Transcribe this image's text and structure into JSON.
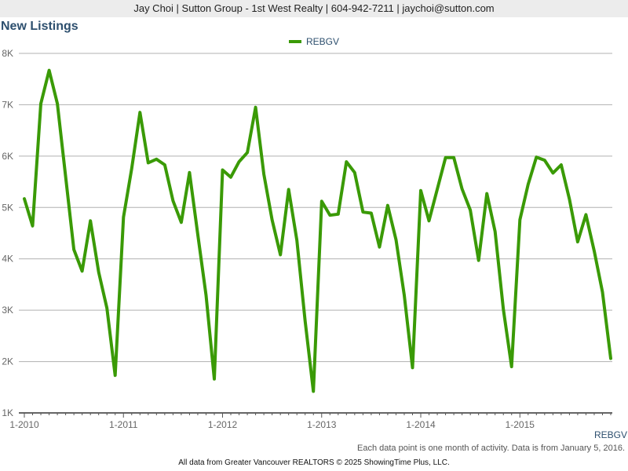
{
  "header": {
    "contact": "Jay Choi | Sutton Group - 1st West Realty | 604-942-7211 | jaychoi@sutton.com"
  },
  "footer": {
    "note": "Each data point is one month of activity. Data is from January 5, 2016.",
    "copyright": "All data from Greater Vancouver REALTORS © 2025 ShowingTime Plus, LLC."
  },
  "colors": {
    "series": "#3a9a06",
    "grid": "#b0b0b0",
    "axis_text": "#666666",
    "title": "#2d4f6e"
  },
  "chart_data": {
    "type": "line",
    "title": "New Listings",
    "series_label": "REBGV",
    "legend": {
      "position": "top-center"
    },
    "grid": true,
    "x": [
      "2010-01",
      "2010-02",
      "2010-03",
      "2010-04",
      "2010-05",
      "2010-06",
      "2010-07",
      "2010-08",
      "2010-09",
      "2010-10",
      "2010-11",
      "2010-12",
      "2011-01",
      "2011-02",
      "2011-03",
      "2011-04",
      "2011-05",
      "2011-06",
      "2011-07",
      "2011-08",
      "2011-09",
      "2011-10",
      "2011-11",
      "2011-12",
      "2012-01",
      "2012-02",
      "2012-03",
      "2012-04",
      "2012-05",
      "2012-06",
      "2012-07",
      "2012-08",
      "2012-09",
      "2012-10",
      "2012-11",
      "2012-12",
      "2013-01",
      "2013-02",
      "2013-03",
      "2013-04",
      "2013-05",
      "2013-06",
      "2013-07",
      "2013-08",
      "2013-09",
      "2013-10",
      "2013-11",
      "2013-12",
      "2014-01",
      "2014-02",
      "2014-03",
      "2014-04",
      "2014-05",
      "2014-06",
      "2014-07",
      "2014-08",
      "2014-09",
      "2014-10",
      "2014-11",
      "2014-12",
      "2015-01",
      "2015-02",
      "2015-03",
      "2015-04",
      "2015-05",
      "2015-06",
      "2015-07",
      "2015-08",
      "2015-09",
      "2015-10",
      "2015-11",
      "2015-12"
    ],
    "series": [
      {
        "name": "REBGV",
        "values": [
          5170,
          4640,
          7020,
          7670,
          7020,
          5600,
          4180,
          3760,
          4740,
          3740,
          3040,
          1730,
          4810,
          5760,
          6850,
          5870,
          5940,
          5830,
          5130,
          4710,
          5680,
          4480,
          3290,
          1660,
          5730,
          5590,
          5890,
          6070,
          6950,
          5650,
          4760,
          4080,
          5350,
          4360,
          2790,
          1420,
          5120,
          4850,
          4870,
          5890,
          5680,
          4910,
          4890,
          4230,
          5040,
          4370,
          3290,
          1880,
          5330,
          4740,
          5360,
          5970,
          5970,
          5360,
          4950,
          3970,
          5270,
          4530,
          3020,
          1900,
          4760,
          5450,
          5980,
          5920,
          5670,
          5830,
          5160,
          4330,
          4860,
          4150,
          3350,
          2060
        ]
      }
    ],
    "x_tick_labels": [
      "1-2010",
      "1-2011",
      "1-2012",
      "1-2013",
      "1-2014",
      "1-2015"
    ],
    "y_tick_labels": [
      "1K",
      "2K",
      "3K",
      "4K",
      "5K",
      "6K",
      "7K",
      "8K"
    ],
    "y_ticks": [
      1000,
      2000,
      3000,
      4000,
      5000,
      6000,
      7000,
      8000
    ],
    "ylim": [
      1000,
      8000
    ]
  }
}
